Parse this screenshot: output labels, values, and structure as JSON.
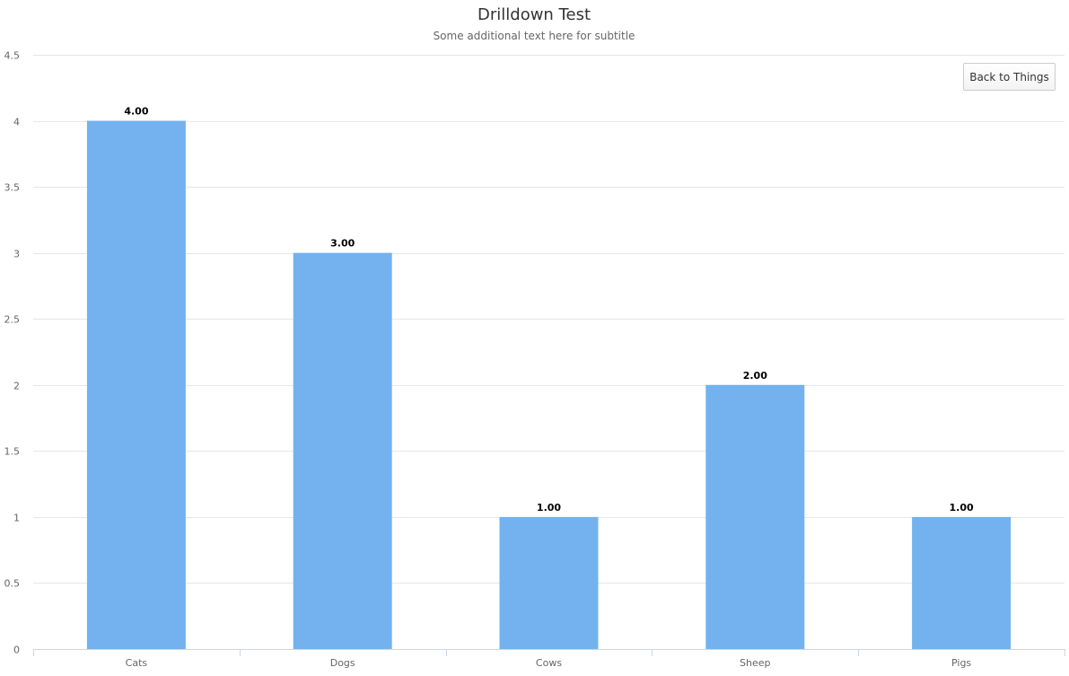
{
  "chart_data": {
    "type": "bar",
    "title": "Drilldown Test",
    "subtitle": "Some additional text here for subtitle",
    "categories": [
      "Cats",
      "Dogs",
      "Cows",
      "Sheep",
      "Pigs"
    ],
    "values": [
      4,
      3,
      1,
      2,
      1
    ],
    "data_labels": [
      "4.00",
      "3.00",
      "1.00",
      "2.00",
      "1.00"
    ],
    "ylim": [
      0,
      4.5
    ],
    "yticks": [
      "0",
      "0.5",
      "1",
      "1.5",
      "2",
      "2.5",
      "3",
      "3.5",
      "4",
      "4.5"
    ],
    "grid": true,
    "legend": "none",
    "bar_color": "#73b2ef"
  },
  "drilldown": {
    "back_label": "Back to Things"
  }
}
